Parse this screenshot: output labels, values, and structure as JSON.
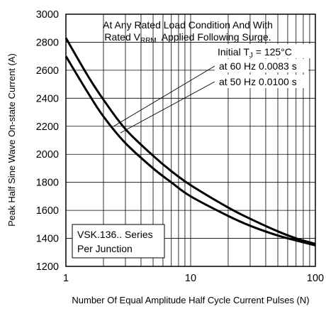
{
  "chart_data": {
    "type": "line",
    "xlabel": "Number Of Equal Amplitude Half Cycle Current Pulses (N)",
    "ylabel": "Peak Half Sine Wave On-state Current (A)",
    "xscale": "log",
    "xlim": [
      1,
      100
    ],
    "ylim": [
      1200,
      3000
    ],
    "x_ticks": [
      "1",
      "10",
      "100"
    ],
    "y_ticks": [
      "1200",
      "1400",
      "1600",
      "1800",
      "2000",
      "2200",
      "2400",
      "2600",
      "2800",
      "3000"
    ],
    "grid": true,
    "series": [
      {
        "name": "at 60 Hz 0.0083 s",
        "points": [
          [
            1,
            2830
          ],
          [
            1.5,
            2560
          ],
          [
            2,
            2390
          ],
          [
            3,
            2180
          ],
          [
            5,
            1990
          ],
          [
            7,
            1880
          ],
          [
            10,
            1780
          ],
          [
            20,
            1620
          ],
          [
            30,
            1540
          ],
          [
            50,
            1450
          ],
          [
            70,
            1400
          ],
          [
            100,
            1360
          ]
        ]
      },
      {
        "name": "at 50 Hz 0.0100 s",
        "points": [
          [
            1,
            2700
          ],
          [
            1.5,
            2440
          ],
          [
            2,
            2270
          ],
          [
            3,
            2080
          ],
          [
            5,
            1900
          ],
          [
            7,
            1800
          ],
          [
            10,
            1700
          ],
          [
            20,
            1560
          ],
          [
            30,
            1490
          ],
          [
            50,
            1420
          ],
          [
            70,
            1385
          ],
          [
            100,
            1350
          ]
        ]
      }
    ],
    "annotations": {
      "line1": "At Any Rated Load Condition And With",
      "line2_prefix": "Rated V",
      "line2_sub": "RRM",
      "line2_suffix": "  Applied Following Surge.",
      "tj_prefix": "Initial T",
      "tj_sub": "J",
      "tj_suffix": " = 125°C",
      "box_line1": "VSK.136.. Series",
      "box_line2": "Per Junction"
    }
  }
}
